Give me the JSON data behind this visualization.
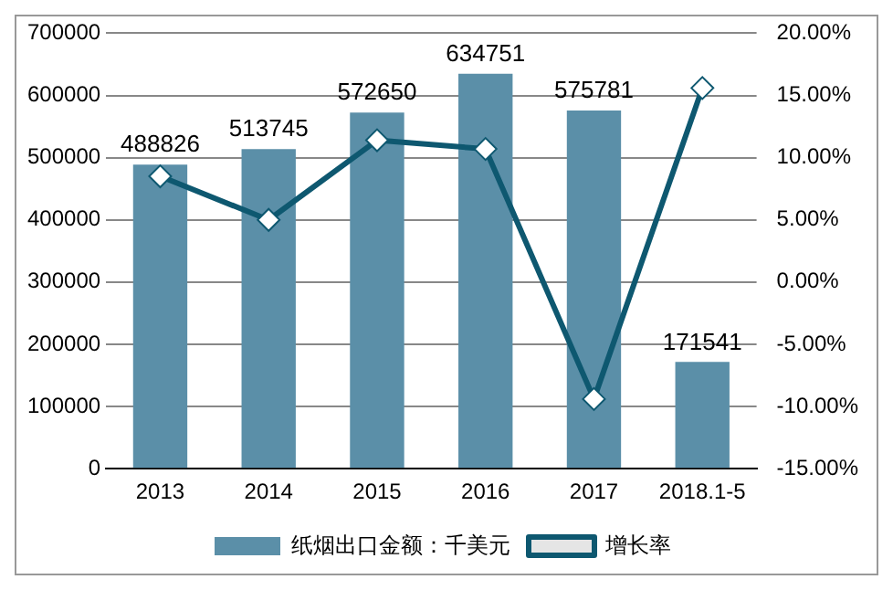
{
  "chart_data": {
    "type": "bar",
    "categories": [
      "2013",
      "2014",
      "2015",
      "2016",
      "2017",
      "2018.1-5"
    ],
    "series": [
      {
        "name": "纸烟出口金额：千美元",
        "color": "#5b8fa8",
        "values": [
          488826,
          513745,
          572650,
          634751,
          575781,
          171541
        ],
        "value_labels": [
          "488826",
          "513745",
          "572650",
          "634751",
          "575781",
          "171541"
        ]
      },
      {
        "name": "增长率",
        "type": "line",
        "axis": "y2",
        "color": "#0e5870",
        "marker": "diamond",
        "values": [
          8.5,
          5.0,
          11.4,
          10.7,
          -9.4,
          15.6
        ]
      }
    ],
    "ylim": [
      0,
      700000
    ],
    "yticks": [
      0,
      100000,
      200000,
      300000,
      400000,
      500000,
      600000,
      700000
    ],
    "y2lim": [
      -15,
      20
    ],
    "y2ticks": [
      {
        "value": -15,
        "label": "-15.00%"
      },
      {
        "value": -10,
        "label": "-10.00%"
      },
      {
        "value": -5,
        "label": "-5.00%"
      },
      {
        "value": 0,
        "label": "0.00%"
      },
      {
        "value": 5,
        "label": "5.00%"
      },
      {
        "value": 10,
        "label": "10.00%"
      },
      {
        "value": 15,
        "label": "15.00%"
      },
      {
        "value": 20,
        "label": "20.00%"
      }
    ],
    "grid": "y",
    "legend": "bottom"
  }
}
